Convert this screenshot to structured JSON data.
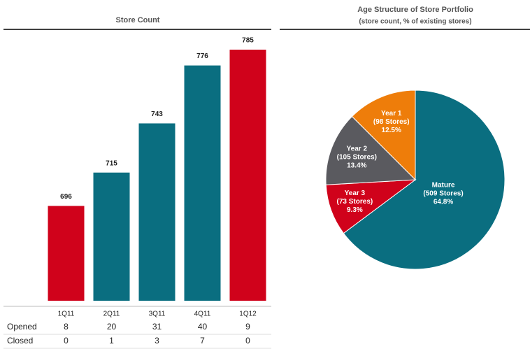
{
  "chart_data": [
    {
      "type": "bar",
      "title": "Store Count",
      "categories": [
        "1Q11",
        "2Q11",
        "3Q11",
        "4Q11",
        "1Q12"
      ],
      "values": [
        696,
        715,
        743,
        776,
        785
      ],
      "colors": [
        "#d0021b",
        "#0a6e80",
        "#0a6e80",
        "#0a6e80",
        "#d0021b"
      ],
      "ylim": [
        642,
        785
      ],
      "table": {
        "rows": [
          {
            "label": "Opened",
            "values": [
              8,
              20,
              31,
              40,
              9
            ]
          },
          {
            "label": "Closed",
            "values": [
              0,
              1,
              3,
              7,
              0
            ]
          }
        ]
      }
    },
    {
      "type": "pie",
      "title": "Age Structure of Store Portfolio",
      "subtitle": "(store count, % of existing stores)",
      "categories": [
        "Mature",
        "Year 3",
        "Year 2",
        "Year 1"
      ],
      "store_labels": [
        "(509 Stores)",
        "(73 Stores)",
        "(105 Stores)",
        "(98 Stores)"
      ],
      "values": [
        64.8,
        9.3,
        13.4,
        12.5
      ],
      "value_labels": [
        "64.8%",
        "9.3%",
        "13.4%",
        "12.5%"
      ],
      "colors": [
        "#0a6e80",
        "#d0021b",
        "#5a5a5f",
        "#ee7d0a"
      ]
    }
  ]
}
